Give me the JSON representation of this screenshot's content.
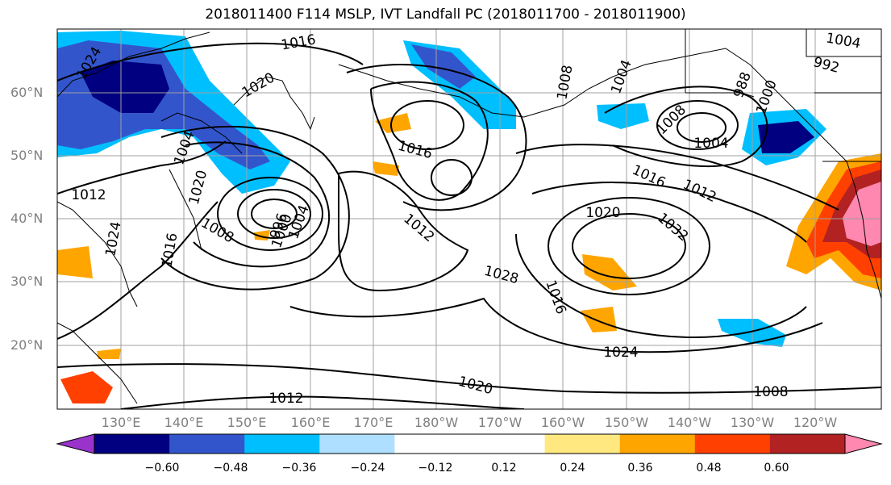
{
  "map": {
    "title": "2018011400 F114 MSLP, IVT Landfall PC (2018011700 - 2018011900)",
    "lat_labels": [
      "60°N",
      "50°N",
      "40°N",
      "30°N",
      "20°N"
    ],
    "lon_labels": [
      "130°E",
      "140°E",
      "150°E",
      "160°E",
      "170°E",
      "180°W",
      "170°W",
      "160°W",
      "150°W",
      "140°W",
      "130°W",
      "120°W"
    ],
    "contour_labels": [
      "1016",
      "1004",
      "1024",
      "1020",
      "1008",
      "1004",
      "1008",
      "1004",
      "992",
      "988",
      "1000",
      "1004",
      "1012",
      "1020",
      "1004",
      "1000",
      "996",
      "1008",
      "1016",
      "1024",
      "1012",
      "1016",
      "1012",
      "1020",
      "1032",
      "1028",
      "1016",
      "1024",
      "1020",
      "1012",
      "1008",
      "1016"
    ],
    "colorbar": {
      "colors": [
        "#9933cc",
        "#000080",
        "#3355cc",
        "#00bfff",
        "#aedfff",
        "#ffffff",
        "#ffffff",
        "#ffe880",
        "#ffa500",
        "#ff4000",
        "#b22222",
        "#ff88b0"
      ],
      "tick_labels": [
        "−0.60",
        "−0.48",
        "−0.36",
        "−0.24",
        "−0.12",
        "0.12",
        "0.24",
        "0.36",
        "0.48",
        "0.60"
      ]
    }
  }
}
